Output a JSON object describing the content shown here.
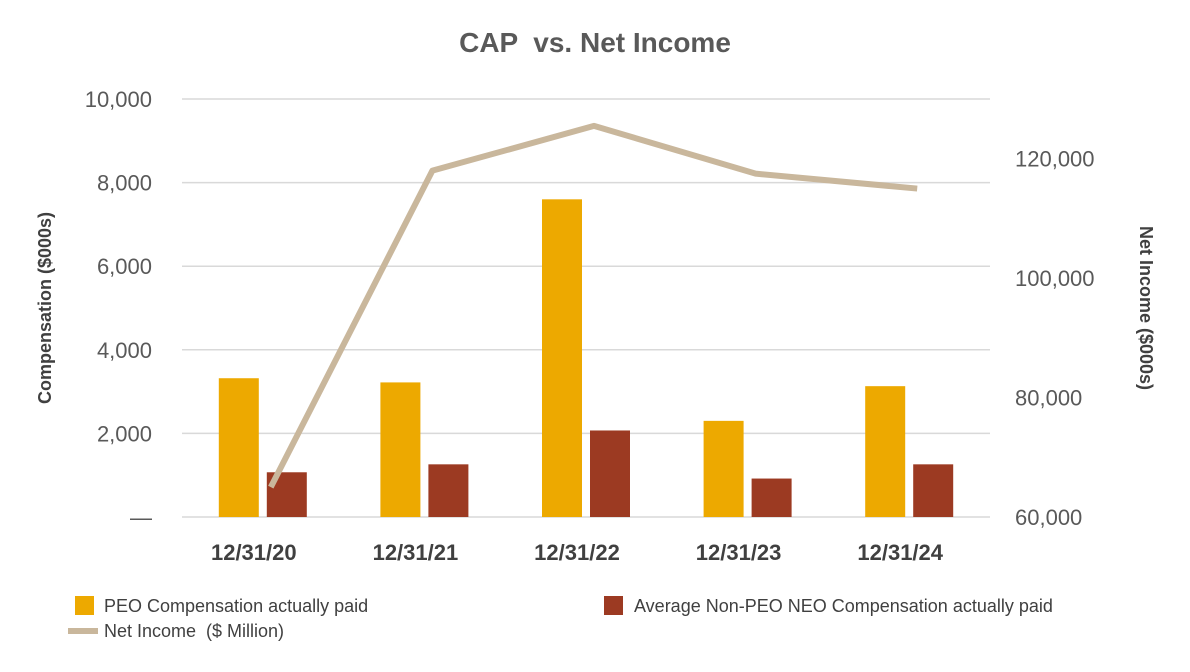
{
  "chart_data": {
    "type": "bar",
    "title": "CAP  vs. Net Income",
    "categories": [
      "12/31/20",
      "12/31/21",
      "12/31/22",
      "12/31/23",
      "12/31/24"
    ],
    "y_left": {
      "label": "Compensation ($000s)",
      "range": [
        0,
        10000
      ],
      "ticks": [
        0,
        2000,
        4000,
        6000,
        8000,
        10000
      ],
      "tick_labels": [
        "—",
        "2,000",
        "4,000",
        "6,000",
        "8,000",
        "10,000"
      ]
    },
    "y_right": {
      "label": "Net Income ($000s)",
      "range": [
        60000,
        130000
      ],
      "ticks": [
        60000,
        80000,
        100000,
        120000
      ],
      "tick_labels": [
        "60,000",
        "80,000",
        "100,000",
        "120,000"
      ]
    },
    "series": [
      {
        "name": "PEO Compensation actually paid",
        "type": "bar",
        "axis": "left",
        "color": "#EDA900",
        "values": [
          3320,
          3220,
          7600,
          2300,
          3130
        ]
      },
      {
        "name": "Average Non-PEO NEO Compensation actually paid",
        "type": "bar",
        "axis": "left",
        "color": "#9C3A22",
        "values": [
          1070,
          1260,
          2070,
          920,
          1260
        ]
      },
      {
        "name": "Net Income  ($ Million)",
        "type": "line",
        "axis": "right",
        "color": "#C9B79C",
        "values": [
          65000,
          118000,
          125500,
          117500,
          115000
        ]
      }
    ],
    "grid": true
  }
}
